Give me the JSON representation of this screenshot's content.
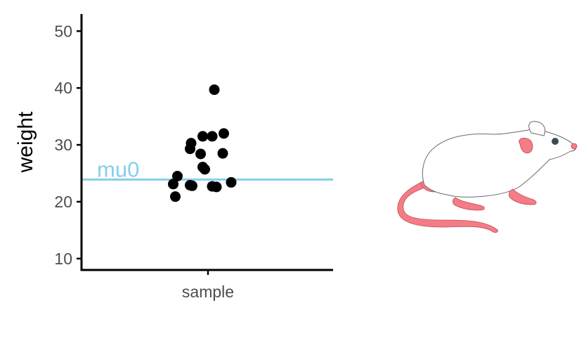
{
  "chart_data": {
    "type": "scatter",
    "title": "",
    "xlabel": "",
    "ylabel": "weight",
    "categories": [
      "sample"
    ],
    "ylim": [
      8,
      53
    ],
    "yticks": [
      10,
      20,
      30,
      40,
      50
    ],
    "grid": false,
    "legend": "none",
    "points": [
      {
        "x": -0.33,
        "y": 23.1
      },
      {
        "x": -0.31,
        "y": 20.9
      },
      {
        "x": -0.29,
        "y": 24.5
      },
      {
        "x": -0.17,
        "y": 22.9
      },
      {
        "x": -0.17,
        "y": 29.3
      },
      {
        "x": -0.16,
        "y": 30.3
      },
      {
        "x": -0.15,
        "y": 22.8
      },
      {
        "x": -0.07,
        "y": 28.4
      },
      {
        "x": -0.05,
        "y": 31.5
      },
      {
        "x": -0.05,
        "y": 26.1
      },
      {
        "x": -0.03,
        "y": 25.7
      },
      {
        "x": 0.04,
        "y": 31.5
      },
      {
        "x": 0.04,
        "y": 22.7
      },
      {
        "x": 0.06,
        "y": 39.7
      },
      {
        "x": 0.08,
        "y": 22.6
      },
      {
        "x": 0.14,
        "y": 28.5
      },
      {
        "x": 0.15,
        "y": 32.0
      },
      {
        "x": 0.22,
        "y": 23.4
      }
    ],
    "reference_line": {
      "label": "mu0",
      "y": 23.9,
      "color": "#87ceeb"
    },
    "point_color": "#000000",
    "axis_color": "#000000"
  },
  "illustration": {
    "icon": "mouse-icon",
    "body_color": "#ffffff",
    "outline_color": "#6b6b6b",
    "pink_color": "#f47c86",
    "eye_color": "#3d4a4f"
  }
}
